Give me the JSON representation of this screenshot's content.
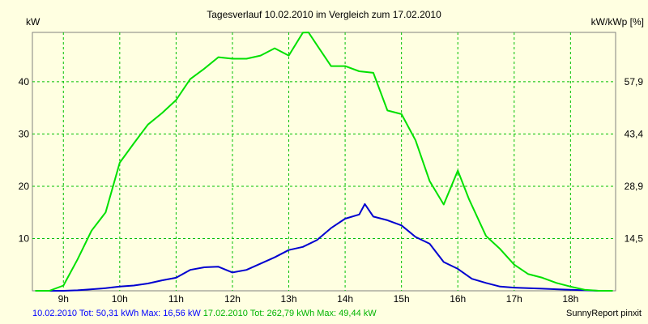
{
  "colors": {
    "background": "#ffffe1",
    "grid": "#00c000",
    "series_1": "#0000d0",
    "series_2": "#00e000",
    "legend_1": "#0000ff",
    "legend_2": "#00b400"
  },
  "chart_data": {
    "type": "line",
    "title": "Tagesverlauf 10.02.2010 im Vergleich zum 17.02.2010",
    "ylabel_left": "kW",
    "ylabel_right": "kW/kWp [%]",
    "ylim": [
      0,
      49.44
    ],
    "xlim": [
      8.45,
      18.8
    ],
    "x_ticks": [
      9,
      10,
      11,
      12,
      13,
      14,
      15,
      16,
      17,
      18
    ],
    "x_tick_labels": [
      "9h",
      "10h",
      "11h",
      "12h",
      "13h",
      "14h",
      "15h",
      "16h",
      "17h",
      "18h"
    ],
    "y_left_ticks": [
      10,
      20,
      30,
      40
    ],
    "y_right_ticks": [
      10,
      20,
      30,
      40
    ],
    "y_right_labels": [
      "14,5",
      "28,9",
      "43,4",
      "57,9"
    ],
    "grid": true,
    "series": [
      {
        "name": "10.02.2010",
        "color": "#0000d0",
        "x": [
          8.5,
          9.0,
          9.25,
          9.5,
          9.75,
          10.0,
          10.25,
          10.5,
          10.75,
          11.0,
          11.25,
          11.5,
          11.75,
          12.0,
          12.25,
          12.5,
          12.75,
          13.0,
          13.25,
          13.5,
          13.75,
          14.0,
          14.25,
          14.35,
          14.5,
          14.75,
          15.0,
          15.25,
          15.5,
          15.75,
          16.0,
          16.25,
          16.5,
          16.75,
          17.0,
          17.25,
          17.5,
          17.75,
          18.0,
          18.25,
          18.5,
          18.75
        ],
        "y": [
          0.0,
          0.0,
          0.1,
          0.3,
          0.5,
          0.8,
          1.0,
          1.4,
          2.0,
          2.5,
          4.0,
          4.5,
          4.6,
          3.5,
          4.0,
          5.2,
          6.4,
          7.8,
          8.4,
          9.7,
          12.0,
          13.8,
          14.6,
          16.6,
          14.2,
          13.5,
          12.5,
          10.3,
          9.0,
          5.5,
          4.2,
          2.3,
          1.5,
          0.8,
          0.6,
          0.5,
          0.4,
          0.3,
          0.2,
          0.1,
          0.0,
          0.0
        ],
        "legend": {
          "date": "10.02.2010",
          "tot": "Tot: 50,31 kWh",
          "max": "Max: 16,56 kW"
        }
      },
      {
        "name": "17.02.2010",
        "color": "#00e000",
        "x": [
          8.5,
          8.75,
          9.0,
          9.25,
          9.5,
          9.75,
          10.0,
          10.25,
          10.5,
          10.75,
          11.0,
          11.25,
          11.5,
          11.75,
          12.0,
          12.25,
          12.5,
          12.75,
          13.0,
          13.25,
          13.35,
          13.5,
          13.75,
          14.0,
          14.25,
          14.5,
          14.75,
          15.0,
          15.25,
          15.5,
          15.75,
          16.0,
          16.2,
          16.5,
          16.75,
          17.0,
          17.25,
          17.5,
          17.75,
          18.0,
          18.25,
          18.5,
          18.75
        ],
        "y": [
          0.0,
          0.0,
          1.0,
          6.0,
          11.5,
          15.0,
          24.5,
          28.2,
          31.8,
          34.0,
          36.5,
          40.5,
          42.5,
          44.7,
          44.4,
          44.4,
          45.0,
          46.4,
          45.0,
          49.4,
          49.44,
          47.0,
          43.0,
          43.0,
          42.0,
          41.7,
          34.5,
          33.8,
          28.8,
          21.0,
          16.5,
          23.0,
          17.5,
          10.5,
          8.0,
          5.0,
          3.2,
          2.5,
          1.5,
          0.8,
          0.2,
          0.0,
          0.0
        ],
        "legend": {
          "date": "17.02.2010",
          "tot": "Tot: 262,79 kWh",
          "max": "Max: 49,44 kW"
        }
      }
    ],
    "footer_right": "SunnyReport pinxit"
  }
}
